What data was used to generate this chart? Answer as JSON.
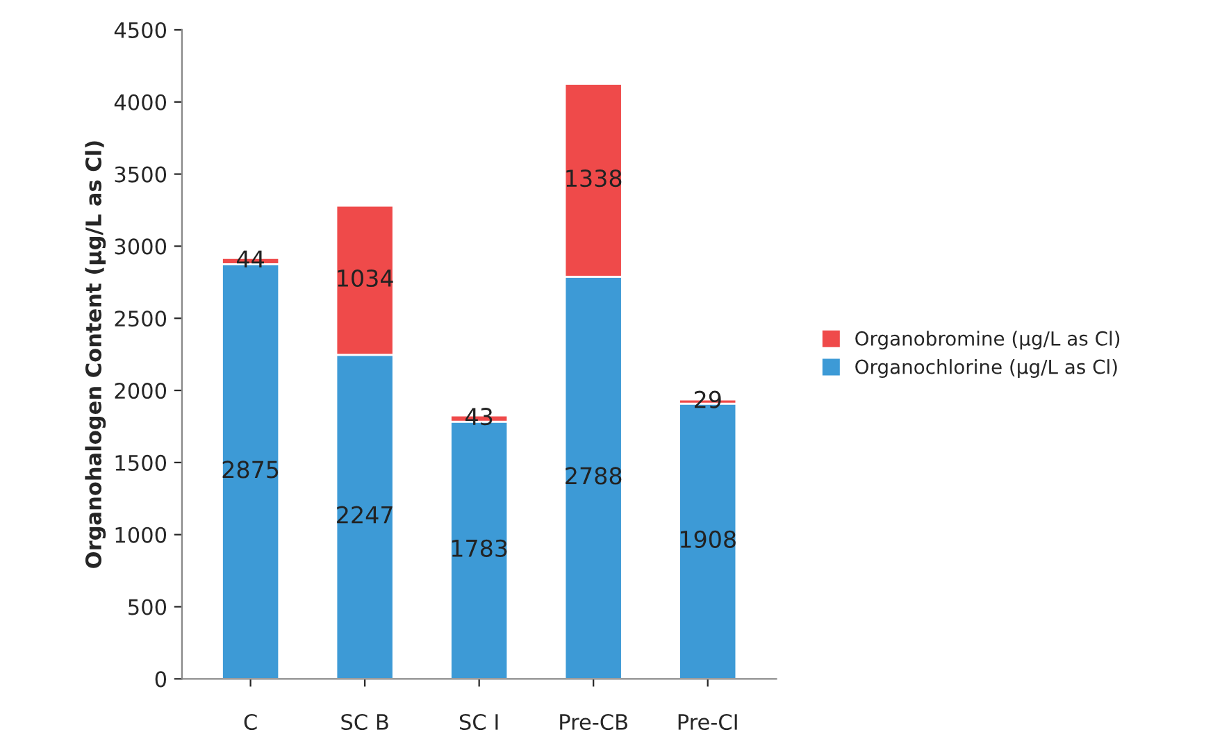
{
  "chart_data": {
    "type": "bar",
    "stacked": true,
    "ylabel": "Organohalogen Content (µg/L as Cl)",
    "categories": [
      "C",
      "SC B",
      "SC I",
      "Pre-CB",
      "Pre-CI"
    ],
    "series": [
      {
        "name": "Organochlorine (µg/L as Cl)",
        "color": "#3d9ad6",
        "values": [
          2875,
          2247,
          1783,
          2788,
          1908
        ]
      },
      {
        "name": "Organobromine (µg/L as Cl)",
        "color": "#ef4a4a",
        "values": [
          44,
          1034,
          43,
          1338,
          29
        ]
      }
    ],
    "ylim": [
      0,
      4500
    ],
    "yticks": [
      0,
      500,
      1000,
      1500,
      2000,
      2500,
      3000,
      3500,
      4000,
      4500
    ],
    "data_labels": true,
    "legend": "right",
    "grid": false
  }
}
